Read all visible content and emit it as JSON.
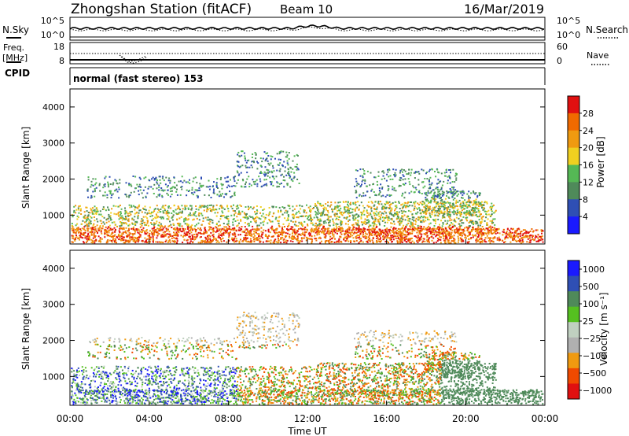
{
  "header": {
    "station": "Zhongshan Station (fitACF)",
    "beam": "Beam 10",
    "date": "16/Mar/2019"
  },
  "status_panels": {
    "nsky_label": "N.Sky",
    "nsky_tick_top": "10^5",
    "nsky_tick_bottom": "10^0",
    "nsearch_label": "N.Search",
    "nsearch_tick_top": "10^5",
    "nsearch_tick_bottom": "10^0",
    "freq_label": "Freq.",
    "freq_unit": "[MHz]",
    "freq_tick_top": "18",
    "freq_tick_bottom": "8",
    "nave_label": "Nave",
    "nave_tick_top": "60",
    "nave_tick_bottom": "0",
    "cpid_label": "CPID",
    "cpid_value": "normal (fast stereo) 153"
  },
  "colors": {
    "power": [
      "#1a1aff",
      "#2f4fb4",
      "#4f8a5a",
      "#55b855",
      "#f0d020",
      "#f09a10",
      "#f06a00",
      "#e01010"
    ],
    "velocity": [
      "#e01010",
      "#f04a00",
      "#f09a10",
      "#b0b0b0",
      "#c0d0c0",
      "#55c020",
      "#4f8a5a",
      "#2f4fb4",
      "#1a1aff"
    ]
  },
  "chart_data": [
    {
      "type": "heatmap",
      "name": "power",
      "xlabel": "",
      "ylabel": "Slant Range [km]",
      "x_ticks": [
        "00:00",
        "04:00",
        "08:00",
        "12:00",
        "16:00",
        "20:00",
        "00:00"
      ],
      "y_ticks": [
        "1000",
        "2000",
        "3000",
        "4000"
      ],
      "ylim": [
        200,
        4500
      ],
      "colorbar_label": "Power [dB]",
      "colorbar_ticks": [
        "4",
        "8",
        "12",
        "16",
        "20",
        "24",
        "28"
      ],
      "colorbar_range": [
        0,
        32
      ]
    },
    {
      "type": "heatmap",
      "name": "velocity",
      "xlabel": "Time UT",
      "ylabel": "Slant Range [km]",
      "x_ticks": [
        "00:00",
        "04:00",
        "08:00",
        "12:00",
        "16:00",
        "20:00",
        "00:00"
      ],
      "y_ticks": [
        "1000",
        "2000",
        "3000",
        "4000"
      ],
      "ylim": [
        200,
        4500
      ],
      "colorbar_label": "Velocity [m s⁻¹]",
      "colorbar_ticks": [
        "1000",
        "500",
        "100",
        "25",
        "−25",
        "−100",
        "−500",
        "−1000"
      ]
    }
  ]
}
